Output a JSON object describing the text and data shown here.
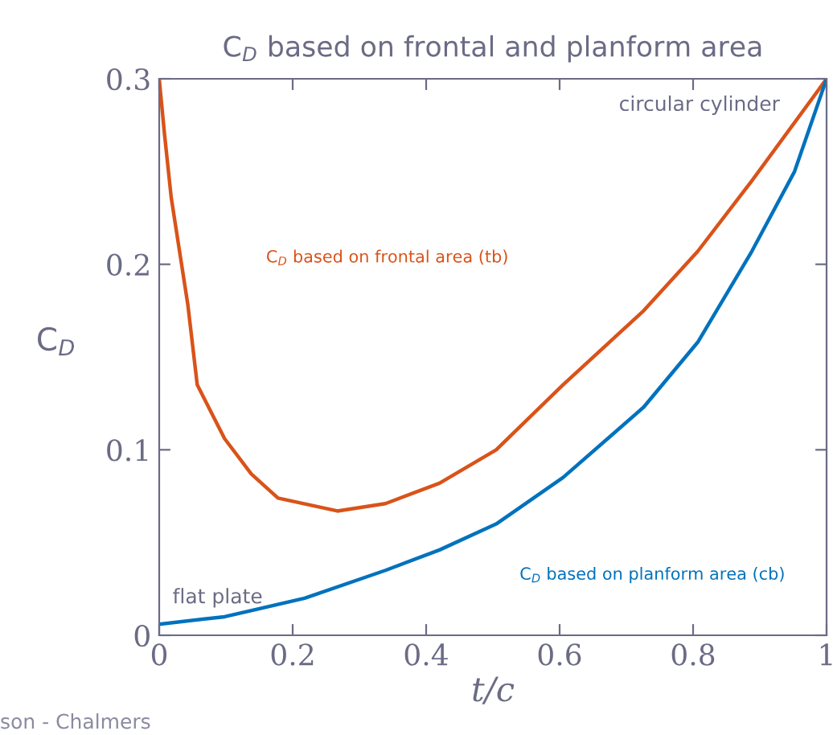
{
  "chart_data": {
    "type": "line",
    "title": "C$_{D}$ based on frontal and planform area",
    "xlabel": "t/c",
    "ylabel": "C$_{D}$",
    "xlim": [
      0,
      1
    ],
    "ylim": [
      0,
      0.3
    ],
    "xticks": [
      0,
      0.2,
      0.4,
      0.6,
      0.8,
      1
    ],
    "yticks": [
      0,
      0.1,
      0.2,
      0.3
    ],
    "grid": false,
    "legend": false,
    "marker": "none",
    "line_style": "solid",
    "series": [
      {
        "name": "C$_{D}$ based on frontal area (tb)",
        "color": "#d95319",
        "x": [
          0,
          0.008,
          0.018,
          0.043,
          0.057,
          0.098,
          0.138,
          0.178,
          0.267,
          0.339,
          0.42,
          0.505,
          0.605,
          0.726,
          0.807,
          0.888,
          1.0
        ],
        "values": [
          0.3,
          0.27,
          0.236,
          0.178,
          0.135,
          0.106,
          0.087,
          0.074,
          0.067,
          0.071,
          0.082,
          0.1,
          0.135,
          0.175,
          0.207,
          0.245,
          0.3
        ]
      },
      {
        "name": "C$_{D}$ based on planform area (cb)",
        "color": "#0072bd",
        "x": [
          0,
          0.098,
          0.218,
          0.339,
          0.42,
          0.505,
          0.605,
          0.726,
          0.807,
          0.888,
          0.952,
          1.0
        ],
        "values": [
          0.006,
          0.01,
          0.02,
          0.035,
          0.046,
          0.06,
          0.085,
          0.123,
          0.158,
          0.207,
          0.25,
          0.3
        ]
      }
    ],
    "annotations": [
      "circular cylinder",
      "flat plate",
      "son - Chalmers"
    ]
  }
}
